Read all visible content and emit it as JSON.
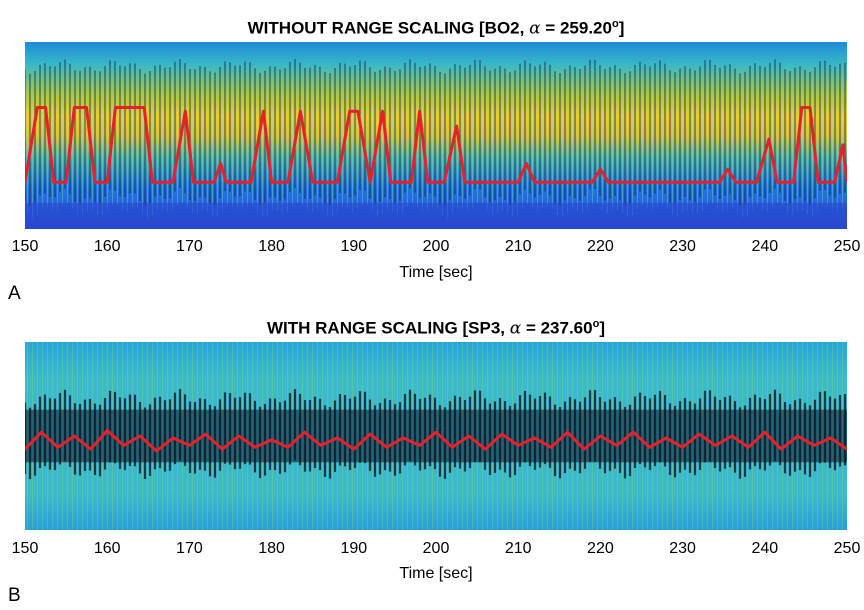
{
  "chart_data": [
    {
      "type": "heatmap",
      "panel_label": "A",
      "title_pre": "WITHOUT RANGE SCALING [BO2, ",
      "title_alpha": "α",
      "title_value": " = 259.20",
      "title_sup": "o",
      "title_post": "]",
      "xlabel": "Time [sec]",
      "xlim": [
        150,
        250
      ],
      "xticks": [
        "150",
        "160",
        "170",
        "180",
        "190",
        "200",
        "210",
        "220",
        "230",
        "240",
        "250"
      ],
      "colormap": "parula",
      "line_color": "#e8202a",
      "line_series": {
        "x": [
          150,
          151.5,
          152.5,
          153.5,
          155,
          156,
          157.5,
          158.5,
          160,
          161,
          162,
          163.5,
          164.5,
          165.5,
          166.5,
          168,
          169.5,
          170.5,
          172,
          173,
          173.8,
          174.5,
          176,
          177.5,
          179,
          180,
          182,
          183.5,
          185,
          186,
          188,
          189.5,
          190.5,
          192,
          193.5,
          194.5,
          196,
          197,
          198,
          199,
          201,
          202.5,
          203.5,
          205,
          210,
          211,
          212,
          215,
          219,
          220,
          221,
          225,
          230,
          234.5,
          235.5,
          236.5,
          239,
          240.5,
          241.5,
          243.5,
          244.5,
          245.5,
          246.5,
          248.5,
          249.5,
          250
        ],
        "y": [
          0.25,
          0.65,
          0.65,
          0.25,
          0.25,
          0.65,
          0.65,
          0.25,
          0.25,
          0.65,
          0.65,
          0.65,
          0.65,
          0.25,
          0.25,
          0.25,
          0.63,
          0.25,
          0.25,
          0.25,
          0.35,
          0.25,
          0.25,
          0.25,
          0.63,
          0.25,
          0.25,
          0.63,
          0.25,
          0.25,
          0.25,
          0.63,
          0.63,
          0.25,
          0.63,
          0.25,
          0.25,
          0.25,
          0.63,
          0.25,
          0.25,
          0.55,
          0.25,
          0.25,
          0.25,
          0.35,
          0.25,
          0.25,
          0.25,
          0.32,
          0.25,
          0.25,
          0.25,
          0.25,
          0.32,
          0.25,
          0.25,
          0.48,
          0.25,
          0.25,
          0.65,
          0.65,
          0.25,
          0.25,
          0.45,
          0.25
        ]
      }
    },
    {
      "type": "heatmap",
      "panel_label": "B",
      "title_pre": "WITH RANGE SCALING [SP3, ",
      "title_alpha": "α",
      "title_value": " = 237.60",
      "title_sup": "o",
      "title_post": "]",
      "xlabel": "Time [sec]",
      "xlim": [
        150,
        250
      ],
      "xticks": [
        "150",
        "160",
        "170",
        "180",
        "190",
        "200",
        "210",
        "220",
        "230",
        "240",
        "250"
      ],
      "colormap": "parula",
      "line_color": "#e8202a",
      "line_series": {
        "x": [
          150,
          152,
          154,
          156,
          158,
          160,
          162,
          164,
          166,
          168,
          170,
          172,
          174,
          176,
          178,
          180,
          182,
          184,
          186,
          188,
          190,
          192,
          194,
          196,
          198,
          200,
          202,
          204,
          206,
          208,
          210,
          212,
          214,
          216,
          218,
          220,
          222,
          224,
          226,
          228,
          230,
          232,
          234,
          236,
          238,
          240,
          242,
          244,
          246,
          248,
          250
        ],
        "y": [
          0.43,
          0.52,
          0.44,
          0.5,
          0.43,
          0.53,
          0.45,
          0.5,
          0.42,
          0.49,
          0.45,
          0.51,
          0.43,
          0.5,
          0.44,
          0.48,
          0.44,
          0.52,
          0.45,
          0.49,
          0.43,
          0.51,
          0.44,
          0.49,
          0.45,
          0.52,
          0.44,
          0.5,
          0.43,
          0.51,
          0.45,
          0.49,
          0.44,
          0.52,
          0.43,
          0.5,
          0.45,
          0.52,
          0.44,
          0.49,
          0.44,
          0.51,
          0.45,
          0.5,
          0.44,
          0.52,
          0.43,
          0.5,
          0.45,
          0.49,
          0.43
        ]
      }
    }
  ]
}
